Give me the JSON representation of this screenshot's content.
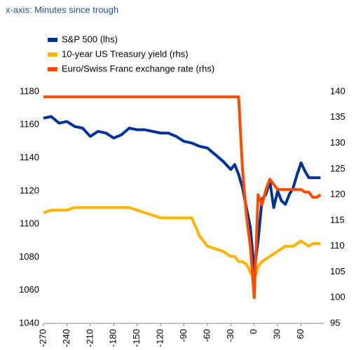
{
  "chart_data": {
    "type": "line",
    "subtitle": "x-axis: Minutes since trough",
    "x": [
      -270,
      -260,
      -250,
      -240,
      -230,
      -220,
      -210,
      -200,
      -190,
      -180,
      -170,
      -160,
      -150,
      -140,
      -130,
      -120,
      -110,
      -100,
      -90,
      -80,
      -70,
      -60,
      -50,
      -40,
      -30,
      -25,
      -20,
      -15,
      -10,
      -5,
      0,
      5,
      10,
      15,
      20,
      25,
      30,
      35,
      40,
      45,
      50,
      55,
      60,
      65,
      70,
      75,
      80,
      85
    ],
    "series": [
      {
        "name": "S&P 500 (lhs)",
        "color": "#003299",
        "values": [
          1164,
          1165,
          1161,
          1162,
          1159,
          1158,
          1153,
          1156,
          1155,
          1152,
          1154,
          1158,
          1157,
          1157,
          1156,
          1155,
          1155,
          1153,
          1150,
          1149,
          1147,
          1146,
          1142,
          1138,
          1133,
          1136,
          1130,
          1122,
          1110,
          1098,
          1072,
          1090,
          1115,
          1118,
          1126,
          1110,
          1120,
          1114,
          1112,
          1118,
          1122,
          1130,
          1137,
          1132,
          1128,
          1128,
          1128,
          1128
        ]
      },
      {
        "name": "10-year US Treasury yield (rhs)",
        "color": "#ffb400",
        "axis": "y2",
        "values": [
          116.5,
          117,
          117,
          117,
          117.5,
          117.5,
          117.5,
          117.5,
          117.5,
          117.5,
          117.5,
          117.5,
          117,
          116.5,
          116,
          115.5,
          115.5,
          115.5,
          115.5,
          115.5,
          112,
          110,
          109.5,
          109,
          108,
          108,
          107,
          107,
          106.5,
          105,
          103.5,
          106,
          107,
          107.5,
          108,
          108.5,
          109,
          109.5,
          110,
          110,
          110,
          110.5,
          111,
          110.5,
          110,
          110.5,
          110.5,
          110.5
        ]
      },
      {
        "name": "Euro/Swiss Franc exchange rate (rhs)",
        "color": "#ff4b00",
        "axis": "y2",
        "values": [
          139,
          139,
          139,
          139,
          139,
          139,
          139,
          139,
          139,
          139,
          139,
          139,
          139,
          139,
          139,
          139,
          139,
          139,
          139,
          139,
          139,
          139,
          139,
          139,
          139,
          139,
          139,
          125,
          116,
          110,
          100,
          120,
          118,
          121,
          123,
          122,
          121,
          121,
          121,
          121,
          121,
          121,
          121,
          120.5,
          120.5,
          119.5,
          119.5,
          120
        ]
      }
    ],
    "xlim": [
      -270,
      90
    ],
    "xticks": [
      -270,
      -240,
      -210,
      -180,
      -150,
      -120,
      -90,
      -60,
      -30,
      0,
      30,
      60
    ],
    "ylim": [
      1040,
      1180
    ],
    "yticks": [
      1040,
      1060,
      1080,
      1100,
      1120,
      1140,
      1160,
      1180
    ],
    "y2lim": [
      95,
      140
    ],
    "y2ticks": [
      95,
      100,
      105,
      110,
      115,
      120,
      125,
      130,
      135,
      140
    ],
    "legend": "top-left",
    "grid": false
  }
}
